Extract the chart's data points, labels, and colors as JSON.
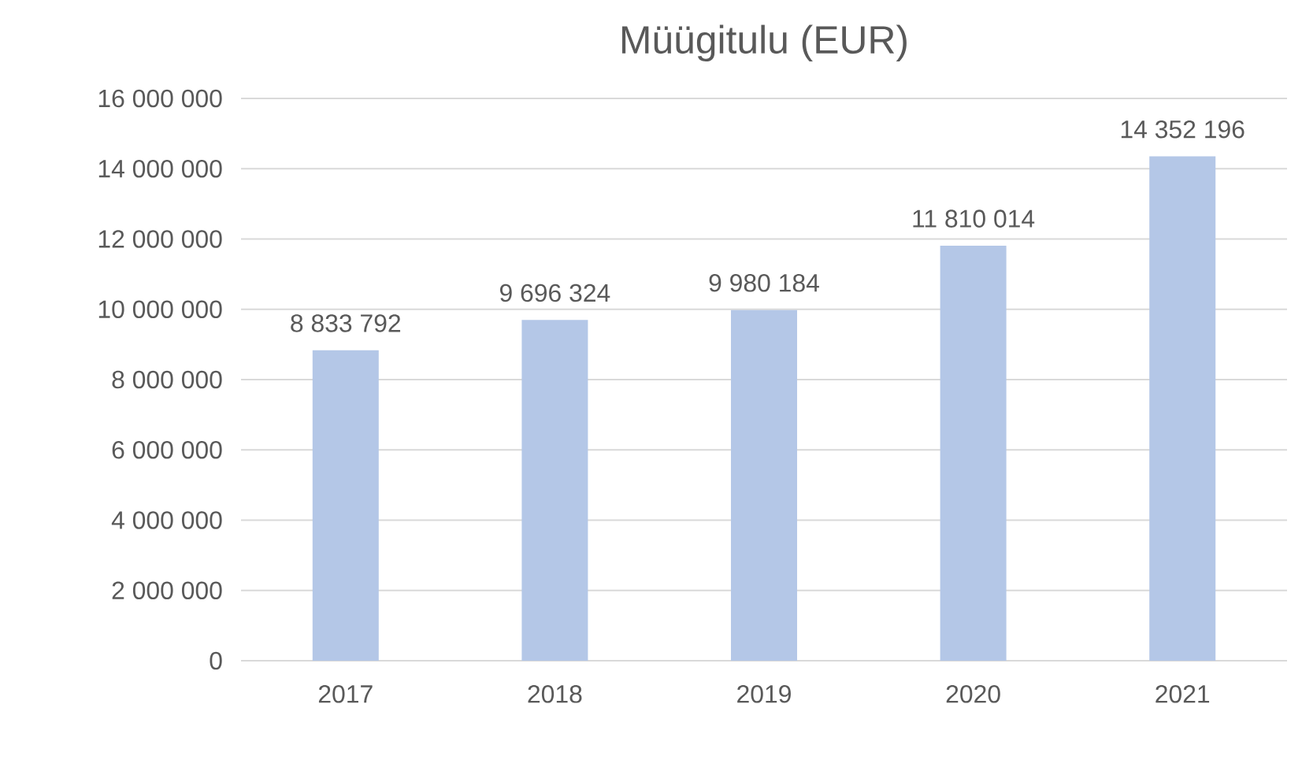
{
  "chart_data": {
    "type": "bar",
    "title": "Müügitulu (EUR)",
    "categories": [
      "2017",
      "2018",
      "2019",
      "2020",
      "2021"
    ],
    "values": [
      8833792,
      9696324,
      9980184,
      11810014,
      14352196
    ],
    "value_labels": [
      "8 833 792",
      "9 696 324",
      "9 980 184",
      "11 810 014",
      "14 352 196"
    ],
    "color": "#b4c7e7",
    "ylim": [
      0,
      16000000
    ],
    "yticks": [
      {
        "value": 0,
        "label": "0"
      },
      {
        "value": 2000000,
        "label": "2 000 000"
      },
      {
        "value": 4000000,
        "label": "4 000 000"
      },
      {
        "value": 6000000,
        "label": "6 000 000"
      },
      {
        "value": 8000000,
        "label": "8 000 000"
      },
      {
        "value": 10000000,
        "label": "10 000 000"
      },
      {
        "value": 12000000,
        "label": "12 000 000"
      },
      {
        "value": 14000000,
        "label": "14 000 000"
      },
      {
        "value": 16000000,
        "label": "16 000 000"
      }
    ],
    "grid": "y"
  }
}
